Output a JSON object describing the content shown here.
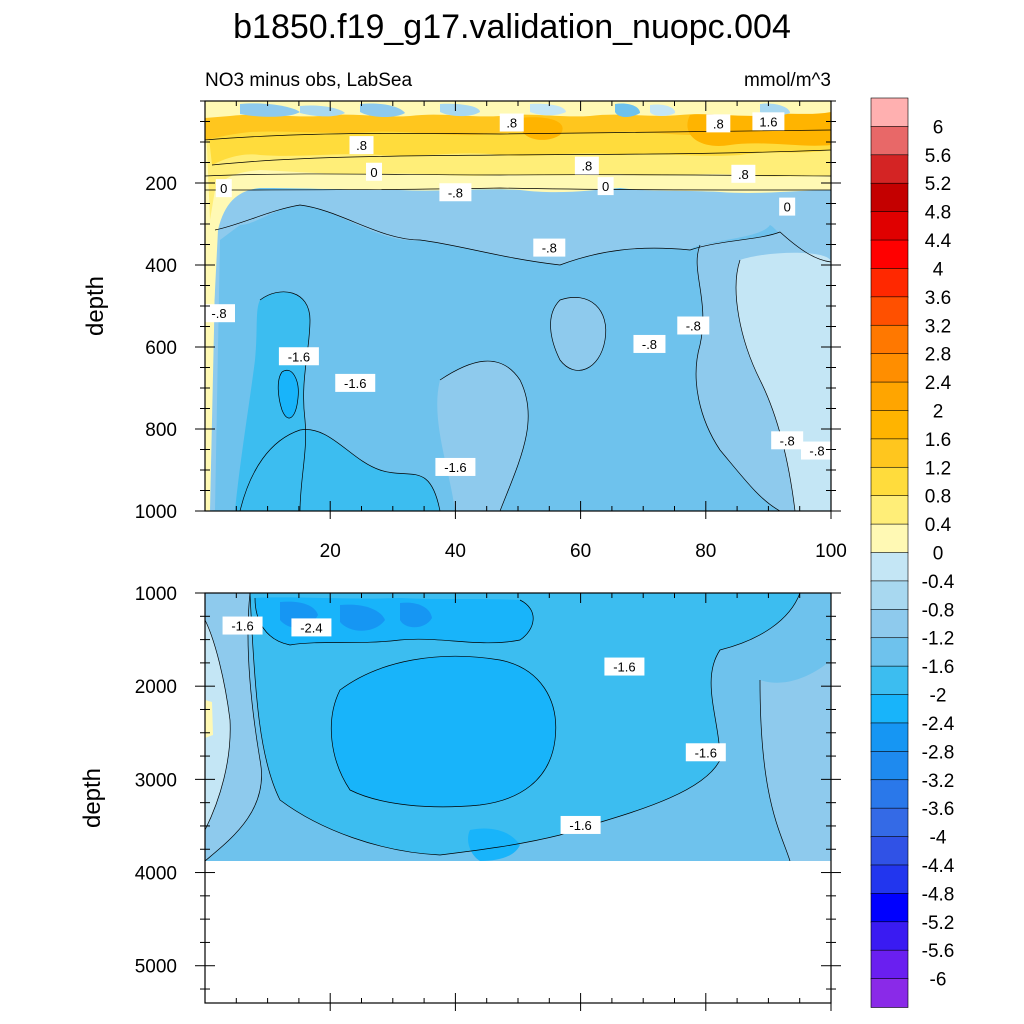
{
  "chart_data": [
    {
      "type": "heatmap",
      "title": "b1850.f19_g17.validation_nuopc.004",
      "left_label": "NO3 minus obs, LabSea",
      "units": "mmol/m^3",
      "xlabel": "",
      "ylabel": "depth",
      "xlim": [
        0,
        100
      ],
      "ylim": [
        1000,
        0
      ],
      "x_ticks": [
        "20",
        "40",
        "60",
        "80",
        "100"
      ],
      "y_ticks": [
        "200",
        "400",
        "600",
        "800",
        "1000"
      ],
      "x_tick_values": [
        20,
        40,
        60,
        80,
        100
      ],
      "y_tick_values": [
        200,
        400,
        600,
        800,
        1000
      ],
      "contour_labels": [
        {
          "text": ".8",
          "x": 49,
          "y": 55
        },
        {
          "text": ".8",
          "x": 82,
          "y": 57
        },
        {
          "text": "1.6",
          "x": 90,
          "y": 52
        },
        {
          "text": ".8",
          "x": 25,
          "y": 110
        },
        {
          "text": ".8",
          "x": 61,
          "y": 160
        },
        {
          "text": "0",
          "x": 3,
          "y": 215
        },
        {
          "text": "0",
          "x": 27,
          "y": 175
        },
        {
          "text": "-.8",
          "x": 40,
          "y": 225
        },
        {
          "text": "0",
          "x": 64,
          "y": 210
        },
        {
          "text": ".8",
          "x": 86,
          "y": 180
        },
        {
          "text": "0",
          "x": 93,
          "y": 260
        },
        {
          "text": "-.8",
          "x": 55,
          "y": 360
        },
        {
          "text": "-.8",
          "x": 2,
          "y": 520
        },
        {
          "text": "-1.6",
          "x": 15,
          "y": 625
        },
        {
          "text": "-1.6",
          "x": 24,
          "y": 690
        },
        {
          "text": "-.8",
          "x": 71,
          "y": 595
        },
        {
          "text": "-.8",
          "x": 78,
          "y": 550
        },
        {
          "text": "-1.6",
          "x": 40,
          "y": 895
        },
        {
          "text": "-.8",
          "x": 93,
          "y": 830
        },
        {
          "text": "-.8",
          "x": 102,
          "y": 855
        }
      ]
    },
    {
      "type": "heatmap",
      "xlabel": "",
      "ylabel": "depth",
      "xlim": [
        0,
        100
      ],
      "ylim": [
        5400,
        1000
      ],
      "no_data_below": 3880,
      "y_ticks": [
        "1000",
        "2000",
        "3000",
        "4000",
        "5000"
      ],
      "y_tick_values": [
        1000,
        2000,
        3000,
        4000,
        5000
      ],
      "contour_labels": [
        {
          "text": "-1.6",
          "x": 6,
          "y": 1360
        },
        {
          "text": "-2.4",
          "x": 17,
          "y": 1380
        },
        {
          "text": "-1.6",
          "x": 67,
          "y": 1800
        },
        {
          "text": "-1.6",
          "x": 80,
          "y": 2720
        },
        {
          "text": "-1.6",
          "x": 60,
          "y": 3500
        }
      ]
    }
  ],
  "colorbar": {
    "levels": [
      "6",
      "5.6",
      "5.2",
      "4.8",
      "4.4",
      "4",
      "3.6",
      "3.2",
      "2.8",
      "2.4",
      "2",
      "1.6",
      "1.2",
      "0.8",
      "0.4",
      "0",
      "-0.4",
      "-0.8",
      "-1.2",
      "-1.6",
      "-2",
      "-2.4",
      "-2.8",
      "-3.2",
      "-3.6",
      "-4",
      "-4.4",
      "-4.8",
      "-5.2",
      "-5.6",
      "-6"
    ],
    "colors": [
      "#ffb0b0",
      "#e86868",
      "#d42424",
      "#c40000",
      "#e00000",
      "#ff0000",
      "#ff2800",
      "#ff5000",
      "#ff7800",
      "#ff8e00",
      "#ffa500",
      "#ffb400",
      "#ffc61e",
      "#ffdc3c",
      "#ffee78",
      "#fff9b4",
      "#c4e6f5",
      "#a8d8f0",
      "#8ecaed",
      "#6ec2ed",
      "#3cbdf0",
      "#18b4fa",
      "#1696f3",
      "#1e8aef",
      "#2a78ea",
      "#346ae6",
      "#3052e6",
      "#2236ee",
      "#0000ff",
      "#3a1bf2",
      "#6a1ff0",
      "#8a2ae8"
    ]
  }
}
